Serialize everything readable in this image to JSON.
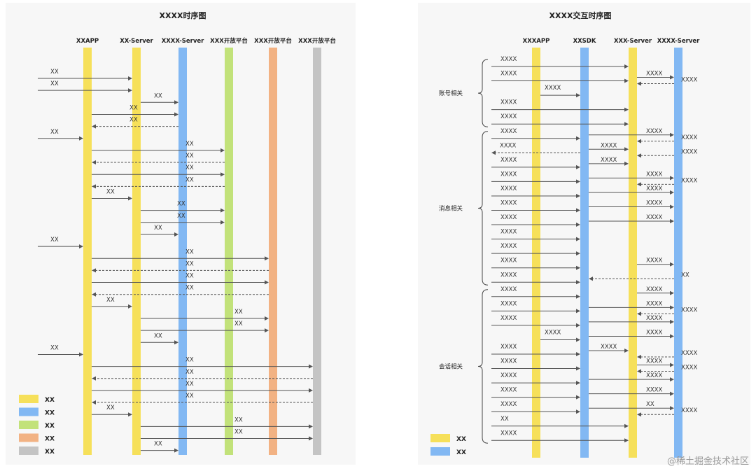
{
  "colors": {
    "yellow": "#f6e05a",
    "blue": "#82b8f3",
    "green": "#c2e27a",
    "orange": "#f2b283",
    "gray": "#c4c4c4",
    "arrow": "#555555"
  },
  "left": {
    "title": "XXXX时序图",
    "lanes": [
      {
        "label": "XXAPP",
        "color": "yellow"
      },
      {
        "label": "XX-Server",
        "color": "yellow"
      },
      {
        "label": "XXXX-Server",
        "color": "blue"
      },
      {
        "label": "XXX开放平台",
        "color": "green"
      },
      {
        "label": "XXX开放平台",
        "color": "orange"
      },
      {
        "label": "XXX开放平台",
        "color": "gray"
      }
    ],
    "messages": [
      {
        "from": "ext",
        "to": 1,
        "label": "XX",
        "dashed": false
      },
      {
        "from": "ext",
        "to": 1,
        "label": "XX",
        "dashed": false
      },
      {
        "from": 1,
        "to": 2,
        "label": "XX",
        "dashed": false
      },
      {
        "from": 0,
        "to": 2,
        "label": "XX",
        "dashed": false
      },
      {
        "from": 2,
        "to": 0,
        "label": "XX",
        "dashed": true
      },
      {
        "from": "ext",
        "to": 0,
        "label": "XX",
        "dashed": false
      },
      {
        "from": 0,
        "to": 3,
        "label": "XX",
        "dashed": false
      },
      {
        "from": 3,
        "to": 0,
        "label": "XX",
        "dashed": true
      },
      {
        "from": 0,
        "to": 3,
        "label": "XX",
        "dashed": false
      },
      {
        "from": 3,
        "to": 0,
        "label": "XX",
        "dashed": true
      },
      {
        "from": 0,
        "to": 1,
        "label": "XX",
        "dashed": false
      },
      {
        "from": 1,
        "to": 3,
        "label": "XX",
        "dashed": false
      },
      {
        "from": 1,
        "to": 3,
        "label": "XX",
        "dashed": false
      },
      {
        "from": 1,
        "to": 2,
        "label": "XX",
        "dashed": false
      },
      {
        "from": "ext",
        "to": 0,
        "label": "XX",
        "dashed": false
      },
      {
        "from": 0,
        "to": 4,
        "label": "XX",
        "dashed": false
      },
      {
        "from": 4,
        "to": 0,
        "label": "XX",
        "dashed": true
      },
      {
        "from": 0,
        "to": 4,
        "label": "XX",
        "dashed": false
      },
      {
        "from": 4,
        "to": 0,
        "label": "XX",
        "dashed": true
      },
      {
        "from": 0,
        "to": 1,
        "label": "XX",
        "dashed": false
      },
      {
        "from": 1,
        "to": 4,
        "label": "XX",
        "dashed": false
      },
      {
        "from": 1,
        "to": 4,
        "label": "XX",
        "dashed": false
      },
      {
        "from": 1,
        "to": 2,
        "label": "XX",
        "dashed": false
      },
      {
        "from": "ext",
        "to": 0,
        "label": "XX",
        "dashed": false
      },
      {
        "from": 0,
        "to": 5,
        "label": "XX",
        "dashed": false
      },
      {
        "from": 5,
        "to": 0,
        "label": "XX",
        "dashed": true
      },
      {
        "from": 0,
        "to": 5,
        "label": "XX",
        "dashed": false
      },
      {
        "from": 5,
        "to": 0,
        "label": "XX",
        "dashed": true
      },
      {
        "from": 0,
        "to": 1,
        "label": "XX",
        "dashed": false
      },
      {
        "from": 1,
        "to": 5,
        "label": "XX",
        "dashed": false
      },
      {
        "from": 1,
        "to": 5,
        "label": "XX",
        "dashed": false
      },
      {
        "from": 1,
        "to": 2,
        "label": "XX",
        "dashed": false
      }
    ],
    "legend": [
      {
        "color": "yellow",
        "label": "XX"
      },
      {
        "color": "blue",
        "label": "XX"
      },
      {
        "color": "green",
        "label": "XX"
      },
      {
        "color": "orange",
        "label": "XX"
      },
      {
        "color": "gray",
        "label": "XX"
      }
    ]
  },
  "right": {
    "title": "XXXX交互时序图",
    "lanes": [
      {
        "label": "XXXAPP",
        "color": "yellow"
      },
      {
        "label": "XXSDK",
        "color": "blue"
      },
      {
        "label": "XXX-Server",
        "color": "yellow"
      },
      {
        "label": "XXXX-Server",
        "color": "blue"
      }
    ],
    "groups": [
      {
        "label": "账号相关",
        "start": 0,
        "end": 4
      },
      {
        "label": "消息相关",
        "start": 5,
        "end": 15
      },
      {
        "label": "会话相关",
        "start": 16,
        "end": 26
      }
    ],
    "messages": [
      {
        "from": "ext",
        "to": 2,
        "label": "XXXX",
        "dashed": false
      },
      {
        "from": "ext",
        "to": 2,
        "label": "XXXX",
        "dashed": false,
        "sub": [
          {
            "from": 2,
            "to": 3,
            "label": "XXXX",
            "dashed": false
          },
          {
            "from": 3,
            "to": 2,
            "label": "XXXX",
            "dashed": true
          }
        ]
      },
      {
        "from": 0,
        "to": 1,
        "label": "XXXX",
        "dashed": false
      },
      {
        "from": "ext",
        "to": 2,
        "label": "XXXX",
        "dashed": false
      },
      {
        "from": "ext",
        "to": 2,
        "label": "XXXX",
        "dashed": false
      },
      {
        "from": "ext",
        "to": 1,
        "label": "XXXX",
        "dashed": false,
        "sub": [
          {
            "from": 1,
            "to": 3,
            "label": "XXXX",
            "dashed": false
          },
          {
            "from": 3,
            "to": 2,
            "label": "XXXX",
            "dashed": true
          }
        ]
      },
      {
        "from": 1,
        "to": "ext",
        "label": "XXXX",
        "dashed": true,
        "sub": [
          {
            "from": 1,
            "to": 2,
            "label": "XXXX",
            "dashed": false
          },
          {
            "from": 3,
            "to": 2,
            "label": "XXXX",
            "dashed": true
          }
        ]
      },
      {
        "from": "ext",
        "to": 1,
        "label": "XXXX",
        "dashed": false,
        "sub": [
          {
            "from": 1,
            "to": 2,
            "label": "XXXX",
            "dashed": false
          }
        ]
      },
      {
        "from": "ext",
        "to": 1,
        "label": "XXXX",
        "dashed": false,
        "sub": [
          {
            "from": 1,
            "to": 3,
            "label": "XXXX",
            "dashed": false
          },
          {
            "from": 3,
            "to": 2,
            "label": "XXXX",
            "dashed": true
          }
        ]
      },
      {
        "from": "ext",
        "to": 1,
        "label": "XXXX",
        "dashed": false,
        "sub": [
          {
            "from": 1,
            "to": 3,
            "label": "XXXX",
            "dashed": false
          }
        ]
      },
      {
        "from": "ext",
        "to": 1,
        "label": "XXXX",
        "dashed": false,
        "sub": [
          {
            "from": 1,
            "to": 3,
            "label": "XXXX",
            "dashed": false
          }
        ]
      },
      {
        "from": "ext",
        "to": 1,
        "label": "XXXX",
        "dashed": false,
        "sub": [
          {
            "from": 1,
            "to": 3,
            "label": "XXXX",
            "dashed": false
          }
        ]
      },
      {
        "from": "ext",
        "to": 1,
        "label": "XXXX",
        "dashed": false
      },
      {
        "from": "ext",
        "to": 1,
        "label": "XXXX",
        "dashed": false
      },
      {
        "from": "ext",
        "to": 1,
        "label": "XXXX",
        "dashed": false,
        "sub": [
          {
            "from": 2,
            "to": 3,
            "label": "XXXX",
            "dashed": false
          }
        ]
      },
      {
        "from": "ext",
        "to": 1,
        "label": "XXXX",
        "dashed": false,
        "sub": [
          {
            "from": 3,
            "to": 1,
            "label": "XX",
            "dashed": true
          }
        ]
      },
      {
        "from": "ext",
        "to": 1,
        "label": "XXXX",
        "dashed": false,
        "sub": [
          {
            "from": 2,
            "to": 3,
            "label": "XXXX",
            "dashed": false
          }
        ]
      },
      {
        "from": "ext",
        "to": 1,
        "label": "XXXX",
        "dashed": false,
        "sub": [
          {
            "from": 1,
            "to": 3,
            "label": "XXXX",
            "dashed": false
          },
          {
            "from": 3,
            "to": 2,
            "label": "XXXX",
            "dashed": true
          }
        ]
      },
      {
        "from": "ext",
        "to": 1,
        "label": "XXXX",
        "dashed": false,
        "sub": [
          {
            "from": 1,
            "to": 3,
            "label": "XXXX",
            "dashed": false
          }
        ]
      },
      {
        "from": 0,
        "to": 1,
        "label": "XXXX",
        "dashed": false,
        "sub": [
          {
            "from": 1,
            "to": 3,
            "label": "XXXX",
            "dashed": false
          }
        ]
      },
      {
        "from": "ext",
        "to": 1,
        "label": "XXXX",
        "dashed": false,
        "sub": [
          {
            "from": 1,
            "to": 2,
            "label": "XXXX",
            "dashed": false
          },
          {
            "from": 3,
            "to": 2,
            "label": "XXXX",
            "dashed": true
          }
        ]
      },
      {
        "from": "ext",
        "to": 1,
        "label": "XXXX",
        "dashed": false,
        "sub": [
          {
            "from": 2,
            "to": 3,
            "label": "XXXX",
            "dashed": false
          },
          {
            "from": 3,
            "to": 2,
            "label": "XXXX",
            "dashed": true
          }
        ]
      },
      {
        "from": "ext",
        "to": 1,
        "label": "XXXX",
        "dashed": false,
        "sub": [
          {
            "from": 1,
            "to": 3,
            "label": "XXXX",
            "dashed": false
          }
        ]
      },
      {
        "from": "ext",
        "to": 1,
        "label": "XXXX",
        "dashed": false,
        "sub": [
          {
            "from": 1,
            "to": 3,
            "label": "XXXX",
            "dashed": false
          }
        ]
      },
      {
        "from": "ext",
        "to": 1,
        "label": "XXXX",
        "dashed": false,
        "sub": [
          {
            "from": 1,
            "to": 3,
            "label": "XX",
            "dashed": false
          },
          {
            "from": 3,
            "to": 2,
            "label": "XXXX",
            "dashed": true
          }
        ]
      },
      {
        "from": "ext",
        "to": 2,
        "label": "XX",
        "dashed": false
      },
      {
        "from": "ext",
        "to": 2,
        "label": "XXXX",
        "dashed": false
      }
    ],
    "legend": [
      {
        "color": "yellow",
        "label": "XX"
      },
      {
        "color": "blue",
        "label": "XX"
      }
    ]
  },
  "watermark": "@稀土掘金技术社区"
}
